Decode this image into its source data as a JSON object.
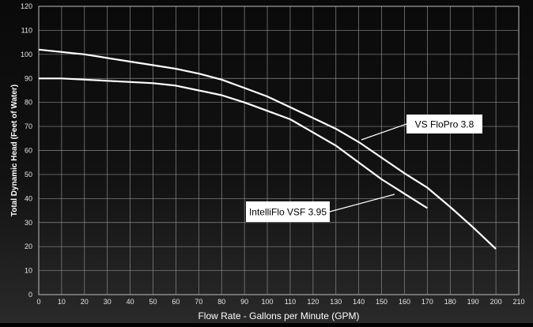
{
  "chart_data": {
    "type": "line",
    "xlabel": "Flow Rate - Gallons per Minute (GPM)",
    "ylabel": "Total Dynamic Head (Feet of Water)",
    "xlim": [
      0,
      210
    ],
    "ylim": [
      0,
      120
    ],
    "x_ticks": [
      "0",
      "10",
      "20",
      "30",
      "40",
      "50",
      "60",
      "70",
      "80",
      "90",
      "100",
      "110",
      "120",
      "130",
      "140",
      "150",
      "160",
      "170",
      "180",
      "190",
      "200",
      "210"
    ],
    "y_ticks": [
      "0",
      "10",
      "20",
      "30",
      "40",
      "50",
      "60",
      "70",
      "80",
      "90",
      "100",
      "110",
      "120"
    ],
    "grid": true,
    "series": [
      {
        "name": "VS FloPro 3.8",
        "x": [
          0,
          10,
          20,
          30,
          40,
          50,
          60,
          70,
          80,
          90,
          100,
          110,
          120,
          130,
          140,
          150,
          160,
          170,
          180,
          190,
          200
        ],
        "y": [
          102,
          101,
          100,
          98.5,
          97,
          95.5,
          94,
          92,
          89.5,
          86,
          82.5,
          78,
          73.5,
          69,
          63.5,
          57,
          50.5,
          44.5,
          36.5,
          28,
          19
        ]
      },
      {
        "name": "IntelliFlo VSF 3.95",
        "x": [
          0,
          10,
          20,
          30,
          40,
          50,
          60,
          70,
          80,
          90,
          100,
          110,
          120,
          130,
          140,
          150,
          160,
          170
        ],
        "y": [
          90,
          90,
          89.5,
          89,
          88.5,
          88,
          87,
          85,
          83,
          80,
          76.5,
          73,
          67.5,
          62,
          55,
          48,
          42,
          36
        ]
      }
    ],
    "annotations": [
      {
        "text": "VS FloPro 3.8",
        "series": 0
      },
      {
        "text": "IntelliFlo VSF 3.95",
        "series": 1
      }
    ]
  }
}
